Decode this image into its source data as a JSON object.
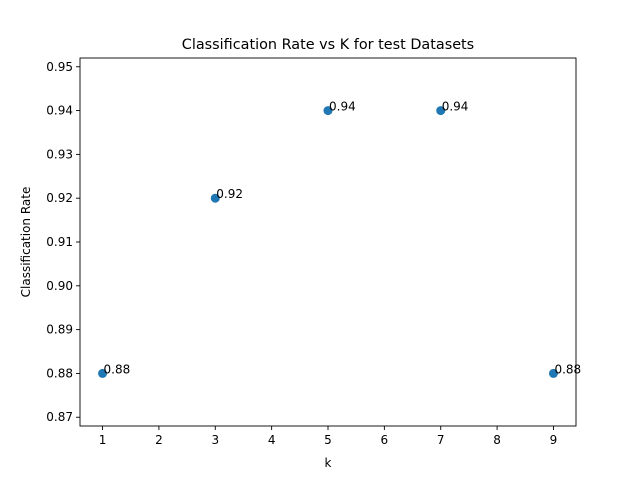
{
  "chart_data": {
    "type": "scatter",
    "title": "Classification Rate vs K for test Datasets",
    "xlabel": "k",
    "ylabel": "Classification Rate",
    "x": [
      1,
      3,
      5,
      7,
      9
    ],
    "y": [
      0.88,
      0.92,
      0.94,
      0.94,
      0.88
    ],
    "point_labels": [
      "0.88",
      "0.92",
      "0.94",
      "0.94",
      "0.88"
    ],
    "xlim": [
      0.6,
      9.4
    ],
    "ylim": [
      0.868,
      0.952
    ],
    "xticks": [
      1,
      2,
      3,
      4,
      5,
      6,
      7,
      8,
      9
    ],
    "xtick_labels": [
      "1",
      "2",
      "3",
      "4",
      "5",
      "6",
      "7",
      "8",
      "9"
    ],
    "yticks": [
      0.87,
      0.88,
      0.89,
      0.9,
      0.91,
      0.92,
      0.93,
      0.94,
      0.95
    ],
    "ytick_labels": [
      "0.87",
      "0.88",
      "0.89",
      "0.90",
      "0.91",
      "0.92",
      "0.93",
      "0.94",
      "0.95"
    ],
    "grid": false,
    "legend": "none",
    "marker_color": "#1f77b4"
  }
}
